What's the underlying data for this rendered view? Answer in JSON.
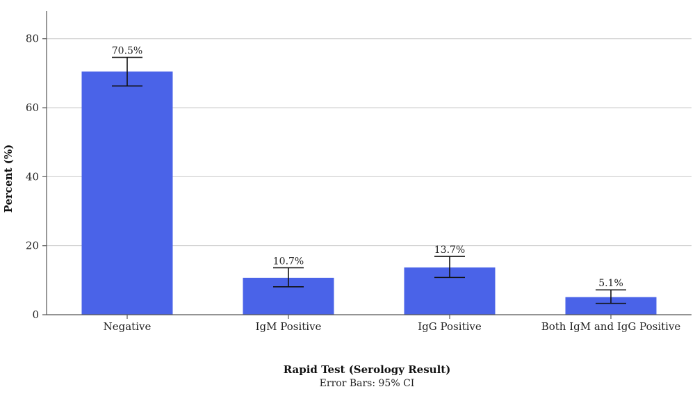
{
  "chart_data": {
    "type": "bar",
    "categories": [
      "Negative",
      "IgM Positive",
      "IgG Positive",
      "Both IgM and IgG Positive"
    ],
    "values": [
      70.5,
      10.7,
      13.7,
      5.1
    ],
    "data_labels": [
      "70.5%",
      "10.7%",
      "13.7%",
      "5.1%"
    ],
    "error_low": [
      66.3,
      8.1,
      10.8,
      3.3
    ],
    "error_high": [
      74.6,
      13.6,
      16.9,
      7.2
    ],
    "xlabel": "Rapid Test (Serology Result)",
    "ylabel": "Percent (%)",
    "note": "Error Bars: 95% CI",
    "ylim": [
      0,
      88
    ],
    "yticks": [
      0,
      20,
      40,
      60,
      80
    ],
    "grid": true,
    "bar_color": "#4a63e8"
  }
}
